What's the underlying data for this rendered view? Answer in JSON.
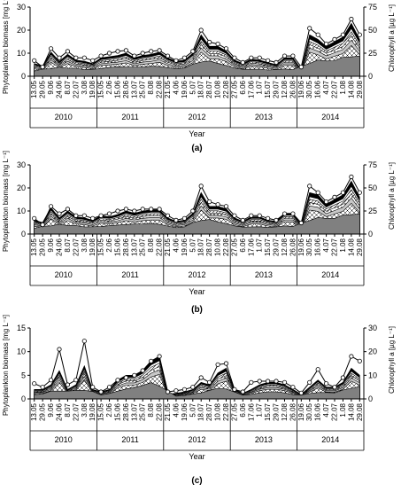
{
  "colors": {
    "axis": "#000000",
    "line": "#000000",
    "dark_fill": "#808080",
    "mid_fill": "#c8c8c8",
    "light_fill": "#ffffff"
  },
  "chart_data": [
    {
      "type": "area",
      "panel_label": "(a)",
      "xlabel": "Year",
      "ylabel": "Phytoplankton biomass [mg L⁻¹]",
      "ylabel_right": "Chlorophyll a [µg L⁻¹]",
      "ylim": [
        0,
        30
      ],
      "yticks": [
        0,
        10,
        20,
        30
      ],
      "ylim_right": [
        0,
        75
      ],
      "yticks_right": [
        0,
        25,
        50,
        75
      ],
      "years": [
        {
          "label": "2010",
          "dates": [
            "13.05",
            "29.05",
            "9.06",
            "24.06",
            "8.07",
            "22.07",
            "3.08",
            "19.08"
          ]
        },
        {
          "label": "2011",
          "dates": [
            "15.05",
            "2.06",
            "15.06",
            "28.06",
            "13.07",
            "25.07",
            "8.08",
            "22.08"
          ]
        },
        {
          "label": "2012",
          "dates": [
            "21.05",
            "4.06",
            "19.06",
            "5.07",
            "18.07",
            "28.07",
            "10.08",
            "22.08"
          ]
        },
        {
          "label": "2013",
          "dates": [
            "27.05",
            "6.06",
            "17.06",
            "1.07",
            "15.07",
            "29.07",
            "12.08",
            "26.08"
          ]
        },
        {
          "label": "2014",
          "dates": [
            "19.06",
            "30.05",
            "16.06",
            "4.07",
            "22.07",
            "1.08",
            "14.08",
            "29.08"
          ]
        }
      ],
      "total_biomass": [
        5.5,
        4.5,
        10.5,
        6.5,
        9.5,
        7,
        6.5,
        5.5,
        8,
        8.5,
        9,
        10,
        8,
        9,
        9.5,
        10.5,
        8,
        6.5,
        7,
        10,
        18,
        13,
        13,
        11,
        7,
        5.5,
        7.5,
        7,
        6,
        5,
        8,
        8,
        3,
        18,
        16,
        13,
        15,
        17,
        23,
        16
      ],
      "chlorophyll": [
        17,
        10,
        30,
        20,
        27,
        20,
        20,
        17,
        22,
        25,
        27,
        28,
        22,
        25,
        27,
        28,
        22,
        17,
        20,
        27,
        50,
        37,
        35,
        30,
        20,
        15,
        20,
        20,
        17,
        15,
        22,
        22,
        10,
        52,
        45,
        35,
        40,
        45,
        62,
        45
      ]
    },
    {
      "type": "area",
      "panel_label": "(b)",
      "xlabel": "Year",
      "ylabel": "Phytoplankton biomass [mg L⁻¹]",
      "ylabel_right": "Chlorophyll a [µg L⁻¹]",
      "ylim": [
        0,
        30
      ],
      "yticks": [
        0,
        10,
        20,
        30
      ],
      "ylim_right": [
        0,
        75
      ],
      "yticks_right": [
        0,
        25,
        50,
        75
      ],
      "years": [
        {
          "label": "2010",
          "dates": [
            "13.05",
            "29.05",
            "9.06",
            "24.06",
            "8.07",
            "22.07",
            "3.08",
            "19.08"
          ]
        },
        {
          "label": "2011",
          "dates": [
            "15.05",
            "2.06",
            "15.06",
            "28.06",
            "13.07",
            "25.07",
            "8.08",
            "22.08"
          ]
        },
        {
          "label": "2012",
          "dates": [
            "21.05",
            "4.06",
            "19.06",
            "5.07",
            "18.07",
            "28.07",
            "10.08",
            "22.08"
          ]
        },
        {
          "label": "2013",
          "dates": [
            "27.05",
            "6.06",
            "17.06",
            "1.07",
            "15.07",
            "29.07",
            "12.08",
            "26.08"
          ]
        },
        {
          "label": "2014",
          "dates": [
            "19.06",
            "30.05",
            "16.06",
            "4.07",
            "22.07",
            "1.08",
            "14.08",
            "29.08"
          ]
        }
      ],
      "total_biomass": [
        6,
        5,
        11.5,
        7,
        10,
        7.5,
        7,
        6,
        8,
        7.5,
        8.5,
        10,
        9,
        10,
        10.5,
        10.5,
        7,
        5.5,
        6,
        9,
        18,
        12,
        12,
        11,
        7,
        5.5,
        7.5,
        7.5,
        6,
        5.5,
        9,
        9,
        4,
        18,
        17,
        13,
        15,
        17,
        23,
        16
      ],
      "chlorophyll": [
        17,
        10,
        30,
        22,
        27,
        20,
        20,
        17,
        20,
        22,
        25,
        27,
        25,
        27,
        27,
        27,
        20,
        15,
        17,
        25,
        52,
        35,
        32,
        30,
        20,
        15,
        20,
        20,
        17,
        15,
        22,
        22,
        12,
        52,
        45,
        35,
        40,
        45,
        62,
        45
      ]
    },
    {
      "type": "area",
      "panel_label": "(c)",
      "xlabel": "Year",
      "ylabel": "Phytoplankton biomass [mg L⁻¹]",
      "ylabel_right": "Chlorophyll a [µg L⁻¹]",
      "ylim": [
        0,
        15
      ],
      "yticks": [
        0,
        5,
        10,
        15
      ],
      "ylim_right": [
        0,
        30
      ],
      "yticks_right": [
        0,
        10,
        20,
        30
      ],
      "years": [
        {
          "label": "2010",
          "dates": [
            "13.05",
            "29.05",
            "9.06",
            "24.06",
            "8.07",
            "22.07",
            "3.08",
            "19.08"
          ]
        },
        {
          "label": "2011",
          "dates": [
            "15.05",
            "2.06",
            "15.06",
            "28.06",
            "13.07",
            "25.07",
            "8.08",
            "22.08"
          ]
        },
        {
          "label": "2012",
          "dates": [
            "21.05",
            "4.06",
            "19.06",
            "5.07",
            "18.07",
            "28.07",
            "10.08",
            "22.08"
          ]
        },
        {
          "label": "2013",
          "dates": [
            "27.05",
            "6.06",
            "17.06",
            "1.07",
            "15.07",
            "29.07",
            "12.08",
            "26.08"
          ]
        },
        {
          "label": "2014",
          "dates": [
            "19.06",
            "30.05",
            "16.06",
            "4.07",
            "22.07",
            "1.08",
            "14.08",
            "29.08"
          ]
        }
      ],
      "total_biomass": [
        2,
        2,
        3,
        6,
        2,
        3,
        7,
        2,
        1.5,
        2,
        4,
        5,
        5,
        6,
        8,
        9,
        1,
        1.2,
        1.5,
        2,
        3.5,
        3,
        5.5,
        6.5,
        2,
        1.2,
        2,
        3,
        3.5,
        3.5,
        3,
        2,
        1,
        2.5,
        4,
        2.5,
        2.5,
        3.5,
        6.5,
        5
      ],
      "chlorophyll": [
        6.5,
        5,
        8,
        21,
        6,
        8,
        24.5,
        5,
        3,
        5,
        8,
        9,
        10,
        12,
        16,
        18,
        3,
        3.5,
        4,
        5,
        9,
        7,
        14.5,
        15,
        4,
        3,
        7,
        7.5,
        7.5,
        7.5,
        7,
        5,
        2.5,
        7,
        12.5,
        6.5,
        5,
        9,
        18,
        16
      ]
    }
  ]
}
